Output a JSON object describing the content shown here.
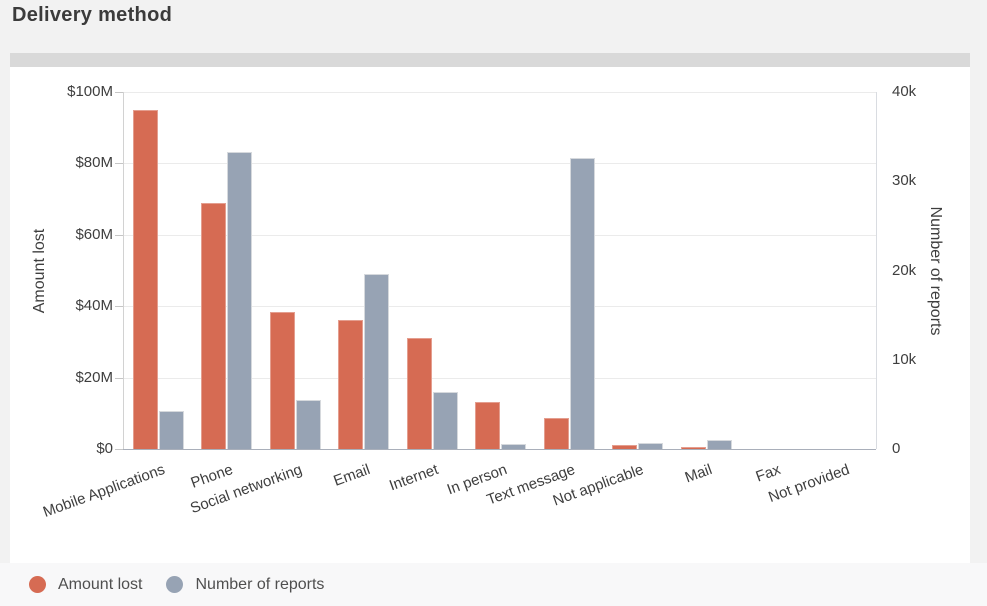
{
  "page": {
    "title": "Delivery method",
    "background_color": "#f2f2f2",
    "card_background_color": "#ffffff",
    "card_strip_color": "#d9d9d9"
  },
  "chart_data": {
    "type": "bar",
    "title": "Delivery method",
    "categories": [
      "Mobile Applications",
      "Phone",
      "Social networking",
      "Email",
      "Internet",
      "In person",
      "Text message",
      "Not applicable",
      "Mail",
      "Fax",
      "Not provided"
    ],
    "series": [
      {
        "name": "Amount lost",
        "axis": "left",
        "unit": "USD millions",
        "color": "#d66b53",
        "values": [
          95,
          69,
          38.5,
          36,
          31,
          13.2,
          8.6,
          1.2,
          0.5,
          0.05,
          0.02
        ]
      },
      {
        "name": "Number of reports",
        "axis": "right",
        "unit": "thousands of reports",
        "color": "#97a3b4",
        "values": [
          4.3,
          33.3,
          5.5,
          19.6,
          6.4,
          0.6,
          32.6,
          0.7,
          1.0,
          0.05,
          0.02
        ]
      }
    ],
    "left_axis": {
      "title": "Amount lost",
      "ticks": [
        "$0",
        "$20M",
        "$40M",
        "$60M",
        "$80M",
        "$100M"
      ],
      "min": 0,
      "max": 100
    },
    "right_axis": {
      "title": "Number of reports",
      "ticks": [
        "0",
        "10k",
        "20k",
        "30k",
        "40k"
      ],
      "min": 0,
      "max": 40
    },
    "grid": "horizontal",
    "legend_position": "bottom-left"
  },
  "legend": {
    "items": [
      {
        "label": "Amount lost",
        "color": "#d66b53"
      },
      {
        "label": "Number of reports",
        "color": "#97a3b4"
      }
    ]
  }
}
